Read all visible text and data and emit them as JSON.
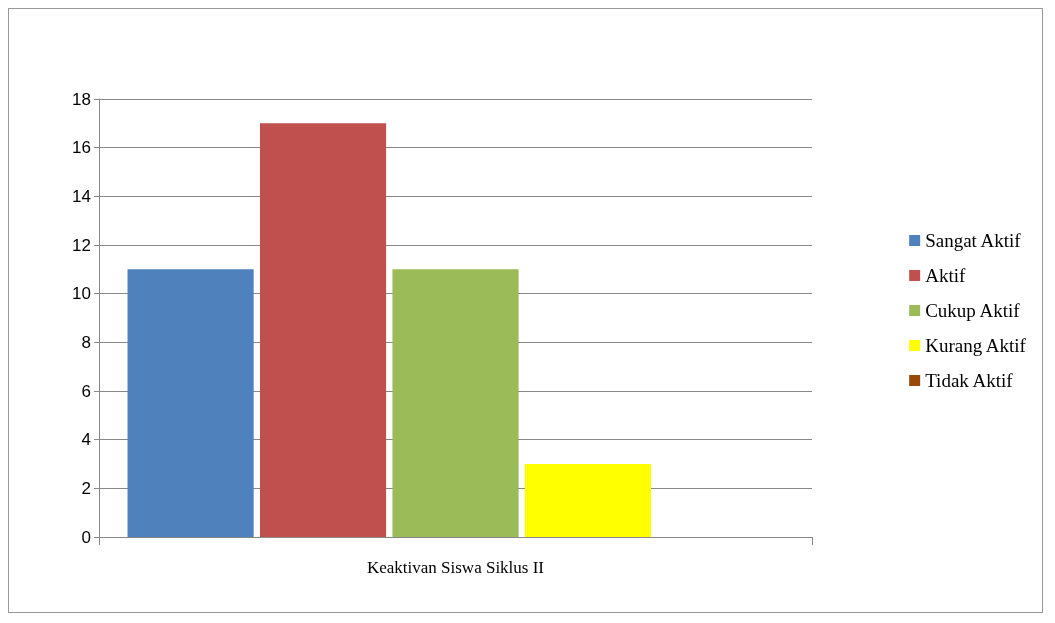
{
  "chart_data": {
    "type": "bar",
    "categories": [
      "Keaktivan Siswa Siklus II"
    ],
    "series": [
      {
        "name": "Sangat Aktif",
        "color": "#4f81bd",
        "values": [
          11
        ]
      },
      {
        "name": "Aktif",
        "color": "#c0504d",
        "values": [
          17
        ]
      },
      {
        "name": "Cukup Aktif",
        "color": "#9bbb59",
        "values": [
          11
        ]
      },
      {
        "name": "Kurang Aktif",
        "color": "#ffff00",
        "values": [
          3
        ]
      },
      {
        "name": "Tidak Aktif",
        "color": "#984807",
        "values": [
          0
        ]
      }
    ],
    "ylim": [
      0,
      18
    ],
    "yticks": [
      0,
      2,
      4,
      6,
      8,
      10,
      12,
      14,
      16,
      18
    ],
    "grid": "y",
    "legend": "right"
  }
}
